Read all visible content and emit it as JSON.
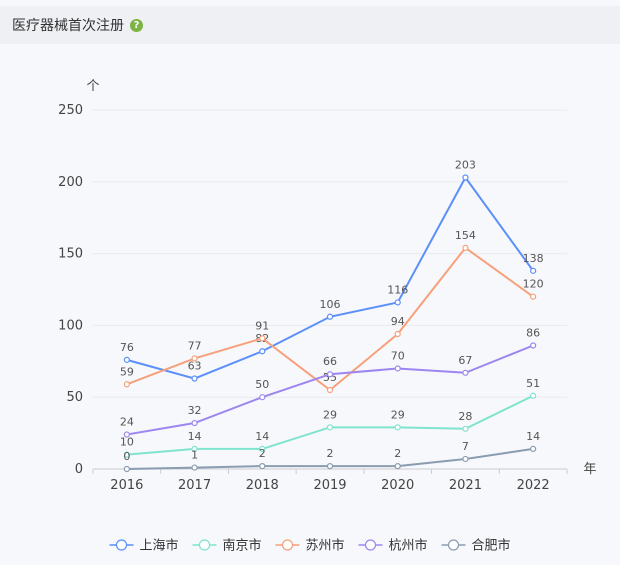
{
  "header": {
    "title": "医疗器械首次注册",
    "help_icon_glyph": "?",
    "help_icon": "help-circle-icon"
  },
  "chart_data": {
    "type": "line",
    "title": "",
    "xlabel": "年",
    "ylabel": "个",
    "categories": [
      "2016",
      "2017",
      "2018",
      "2019",
      "2020",
      "2021",
      "2022"
    ],
    "ylim": [
      0,
      250
    ],
    "yticks": [
      0,
      50,
      100,
      150,
      200,
      250
    ],
    "grid": true,
    "legend": "bottom",
    "series": [
      {
        "name": "上海市",
        "color": "#5b8ff9",
        "values": [
          76,
          63,
          82,
          106,
          116,
          203,
          138
        ]
      },
      {
        "name": "南京市",
        "color": "#7fe3cf",
        "values": [
          10,
          14,
          14,
          29,
          29,
          28,
          51
        ]
      },
      {
        "name": "苏州市",
        "color": "#f7a07c",
        "values": [
          59,
          77,
          91,
          55,
          94,
          154,
          120
        ]
      },
      {
        "name": "杭州市",
        "color": "#9d86f0",
        "values": [
          24,
          32,
          50,
          66,
          70,
          67,
          86
        ]
      },
      {
        "name": "合肥市",
        "color": "#8a9cb0",
        "values": [
          0,
          1,
          2,
          2,
          2,
          7,
          14
        ]
      }
    ]
  }
}
